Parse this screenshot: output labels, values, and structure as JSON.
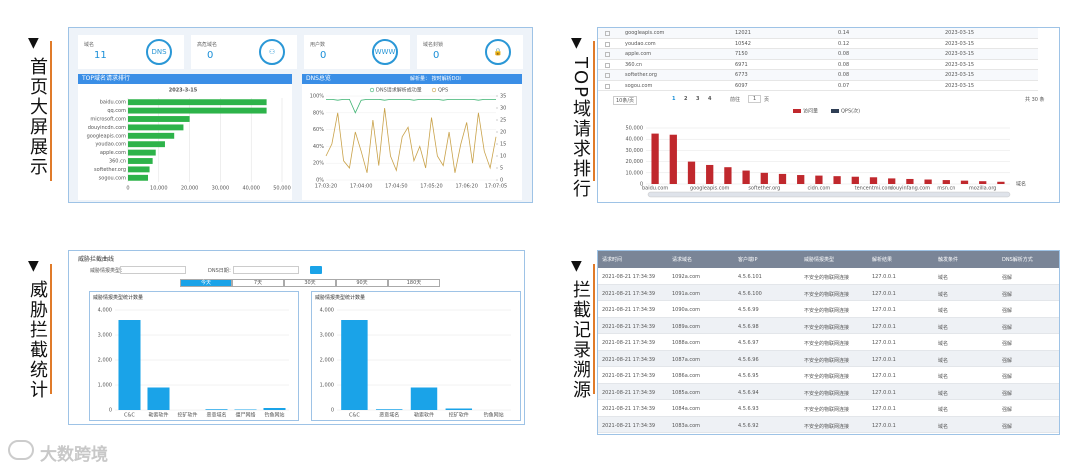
{
  "sections": [
    {
      "label": "首页大屏展示"
    },
    {
      "label": "TOP域请求排行"
    },
    {
      "label": "威胁拦截统计"
    },
    {
      "label": "拦截记录溯源"
    }
  ],
  "logo": "大数跨境",
  "dashboard": {
    "cards": [
      {
        "label": "域名",
        "value": 11
      },
      {
        "label": "高危域名",
        "value": 0
      },
      {
        "label": "用户数",
        "value": 0
      },
      {
        "label": "域名封锁",
        "value": 0
      }
    ],
    "top_chart": {
      "type": "bar",
      "title": "TOP域名请求排行",
      "subtitle": "2023-3-15",
      "color": "#2db34a",
      "categories": [
        "baidu.com",
        "qq.com",
        "microsoft.com",
        "douyincdn.com",
        "googleapis.com",
        "youdao.com",
        "apple.com",
        "360.cn",
        "softether.org",
        "sogou.com"
      ],
      "values": [
        45000,
        45000,
        20000,
        18000,
        15000,
        12000,
        9000,
        8000,
        7000,
        6500
      ],
      "xlim": [
        0,
        50000
      ],
      "xticks": [
        0,
        {
          "value": 10000,
          "label": "10,000"
        },
        {
          "value": 20000,
          "label": "20,000"
        },
        {
          "value": 30000,
          "label": "30,000"
        },
        {
          "value": 40000,
          "label": "40,000"
        },
        {
          "value": 50000,
          "label": "50,000"
        }
      ]
    },
    "dns_chart": {
      "type": "line",
      "title": "DNS总览",
      "control": "解析量： 按时解析DOI",
      "categories": [
        "17:03:20",
        null,
        null,
        null,
        null,
        null,
        "17:04:00",
        null,
        null,
        null,
        null,
        null,
        "17:04:50",
        null,
        null,
        null,
        null,
        null,
        "17:05:20",
        null,
        null,
        null,
        null,
        null,
        "17:06:20",
        null,
        null,
        null,
        null,
        "17:07:05"
      ],
      "series": [
        {
          "name": "DNS请求解析成功量",
          "color": "#3cb371",
          "values": [
            96,
            96,
            95,
            96,
            96,
            80,
            95,
            96,
            96,
            96,
            95,
            96,
            96,
            96,
            96,
            95,
            96,
            96,
            96,
            96,
            95,
            96,
            96,
            96,
            96,
            96,
            95,
            96,
            96,
            96
          ]
        },
        {
          "name": "QPS",
          "color": "#c9a24a",
          "axis": "y2",
          "values": [
            10,
            15,
            28,
            8,
            5,
            20,
            12,
            3,
            25,
            6,
            30,
            10,
            4,
            18,
            22,
            8,
            14,
            5,
            26,
            10,
            6,
            20,
            3,
            15,
            24,
            7,
            28,
            12,
            5,
            18
          ]
        }
      ],
      "ylim": [
        0,
        100
      ],
      "yticks": [
        {
          "value": 0,
          "label": "0%"
        },
        {
          "value": 20,
          "label": "20%"
        },
        {
          "value": 40,
          "label": "40%"
        },
        {
          "value": 60,
          "label": "60%"
        },
        {
          "value": 80,
          "label": "80%"
        },
        {
          "value": 100,
          "label": "100%"
        }
      ],
      "y2lim": [
        0,
        35
      ],
      "y2ticks": [
        0,
        5,
        10,
        15,
        20,
        25,
        30,
        35
      ]
    }
  },
  "ranking": {
    "rows": [
      [
        "googleapis.com",
        12021,
        0.14,
        "2023-03-15"
      ],
      [
        "youdao.com",
        10542,
        0.12,
        "2023-03-15"
      ],
      [
        "apple.com",
        7150,
        0.08,
        "2023-03-15"
      ],
      [
        "360.cn",
        6971,
        0.08,
        "2023-03-15"
      ],
      [
        "softether.org",
        6773,
        0.08,
        "2023-03-15"
      ],
      [
        "sogou.com",
        6097,
        0.07,
        "2023-03-15"
      ]
    ],
    "pagination": {
      "size": "10条/页",
      "pages": [
        "1",
        "2",
        "3",
        "4"
      ],
      "goto": "前往",
      "page": "1",
      "unit": "页",
      "total": "共 30 条"
    },
    "chart": {
      "type": "bar",
      "legend": [
        {
          "name": "访问量",
          "color": "#c0282d"
        },
        {
          "name": "QPS(次)",
          "color": "#2f3e55"
        }
      ],
      "x_label": "域名",
      "color": "#c0282d",
      "categories": [
        "baidu.com",
        null,
        null,
        "googleapis.com",
        null,
        null,
        "softether.org",
        null,
        null,
        "cidn.com",
        null,
        null,
        "tencentmi.com",
        null,
        "douyinfang.com",
        null,
        "msn.cn",
        null,
        "mozilla.org",
        null
      ],
      "values": [
        45000,
        44000,
        20000,
        17000,
        15000,
        12000,
        10000,
        9000,
        8000,
        7500,
        7000,
        6500,
        6000,
        5000,
        4500,
        4000,
        3500,
        3000,
        2500,
        2000
      ],
      "ylim": [
        0,
        50000
      ],
      "yticks": [
        0,
        {
          "value": 10000,
          "label": "10,000"
        },
        {
          "value": 20000,
          "label": "20,000"
        },
        {
          "value": 30000,
          "label": "30,000"
        },
        {
          "value": 40000,
          "label": "40,000"
        },
        {
          "value": 50000,
          "label": "50,000"
        }
      ]
    }
  },
  "threat": {
    "title": "威胁拦截曲线",
    "filter1": "威胁情报类型：",
    "filter2": "DNS日期：",
    "tabs": [
      "今天",
      "7天",
      "30天",
      "90天",
      "180天"
    ],
    "charts": [
      {
        "type": "bar",
        "title": "威胁情报类型统计数量",
        "color": "#1aa3e8",
        "categories": [
          "C&C",
          "勒索软件",
          "挖矿软件",
          "恶意域名",
          "僵尸网络",
          "钓鱼网站"
        ],
        "values": [
          3600,
          900,
          0,
          30,
          20,
          80
        ],
        "ylim": [
          0,
          4000
        ],
        "yticks": [
          0,
          {
            "value": 1000,
            "label": "1,000"
          },
          {
            "value": 2000,
            "label": "2,000"
          },
          {
            "value": 3000,
            "label": "3,000"
          },
          {
            "value": 4000,
            "label": "4,000"
          }
        ]
      },
      {
        "type": "bar",
        "title": "威胁情报类型统计数量",
        "color": "#1aa3e8",
        "categories": [
          "C&C",
          "恶意域名",
          "勒索软件",
          "挖矿软件",
          "钓鱼网站"
        ],
        "values": [
          3600,
          30,
          900,
          60,
          0
        ],
        "ylim": [
          0,
          4000
        ],
        "yticks": [
          0,
          {
            "value": 1000,
            "label": "1,000"
          },
          {
            "value": 2000,
            "label": "2,000"
          },
          {
            "value": 3000,
            "label": "3,000"
          },
          {
            "value": 4000,
            "label": "4,000"
          }
        ]
      }
    ]
  },
  "records": {
    "headers": [
      "请求时间",
      "请求域名",
      "客户端IP",
      "威胁情报类型",
      "解析结果",
      "触发条件",
      "DNS解析方式"
    ],
    "rows": [
      [
        "2021-08-21 17:34:39",
        "1092a.com",
        "4.5.6.101",
        "不安全的物联网连接",
        "127.0.0.1",
        "域名",
        "强解"
      ],
      [
        "2021-08-21 17:34:39",
        "1091a.com",
        "4.5.6.100",
        "不安全的物联网连接",
        "127.0.0.1",
        "域名",
        "强解"
      ],
      [
        "2021-08-21 17:34:39",
        "1090a.com",
        "4.5.6.99",
        "不安全的物联网连接",
        "127.0.0.1",
        "域名",
        "强解"
      ],
      [
        "2021-08-21 17:34:39",
        "1089a.com",
        "4.5.6.98",
        "不安全的物联网连接",
        "127.0.0.1",
        "域名",
        "强解"
      ],
      [
        "2021-08-21 17:34:39",
        "1088a.com",
        "4.5.6.97",
        "不安全的物联网连接",
        "127.0.0.1",
        "域名",
        "强解"
      ],
      [
        "2021-08-21 17:34:39",
        "1087a.com",
        "4.5.6.96",
        "不安全的物联网连接",
        "127.0.0.1",
        "域名",
        "强解"
      ],
      [
        "2021-08-21 17:34:39",
        "1086a.com",
        "4.5.6.95",
        "不安全的物联网连接",
        "127.0.0.1",
        "域名",
        "强解"
      ],
      [
        "2021-08-21 17:34:39",
        "1085a.com",
        "4.5.6.94",
        "不安全的物联网连接",
        "127.0.0.1",
        "域名",
        "强解"
      ],
      [
        "2021-08-21 17:34:39",
        "1084a.com",
        "4.5.6.93",
        "不安全的物联网连接",
        "127.0.0.1",
        "域名",
        "强解"
      ],
      [
        "2021-08-21 17:34:39",
        "1083a.com",
        "4.5.6.92",
        "不安全的物联网连接",
        "127.0.0.1",
        "域名",
        "强解"
      ]
    ]
  }
}
